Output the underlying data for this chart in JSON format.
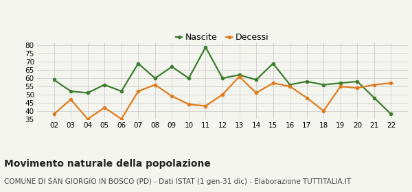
{
  "years": [
    "02",
    "03",
    "04",
    "05",
    "06",
    "07",
    "08",
    "09",
    "10",
    "11",
    "12",
    "13",
    "14",
    "15",
    "16",
    "17",
    "18",
    "19",
    "20",
    "21",
    "22"
  ],
  "nascite": [
    59,
    52,
    51,
    56,
    52,
    69,
    60,
    67,
    60,
    79,
    60,
    62,
    59,
    69,
    56,
    58,
    56,
    57,
    58,
    48,
    38
  ],
  "decessi": [
    38,
    47,
    35,
    42,
    35,
    52,
    56,
    49,
    44,
    43,
    50,
    61,
    51,
    57,
    55,
    48,
    40,
    55,
    54,
    56,
    57
  ],
  "nascite_color": "#3a7d2c",
  "decessi_color": "#e07b1a",
  "bg_color": "#f5f5f0",
  "grid_color": "#cccccc",
  "ylim_min": 35,
  "ylim_max": 82,
  "yticks": [
    35,
    40,
    45,
    50,
    55,
    60,
    65,
    70,
    75,
    80
  ],
  "title": "Movimento naturale della popolazione",
  "subtitle": "COMUNE DI SAN GIORGIO IN BOSCO (PD) - Dati ISTAT (1 gen-31 dic) - Elaborazione TUTTITALIA.IT",
  "legend_nascite": "Nascite",
  "legend_decessi": "Decessi",
  "marker_size": 4,
  "line_width": 1.6,
  "tick_fontsize": 7.5,
  "title_fontsize": 10,
  "subtitle_fontsize": 7.5,
  "legend_fontsize": 9
}
